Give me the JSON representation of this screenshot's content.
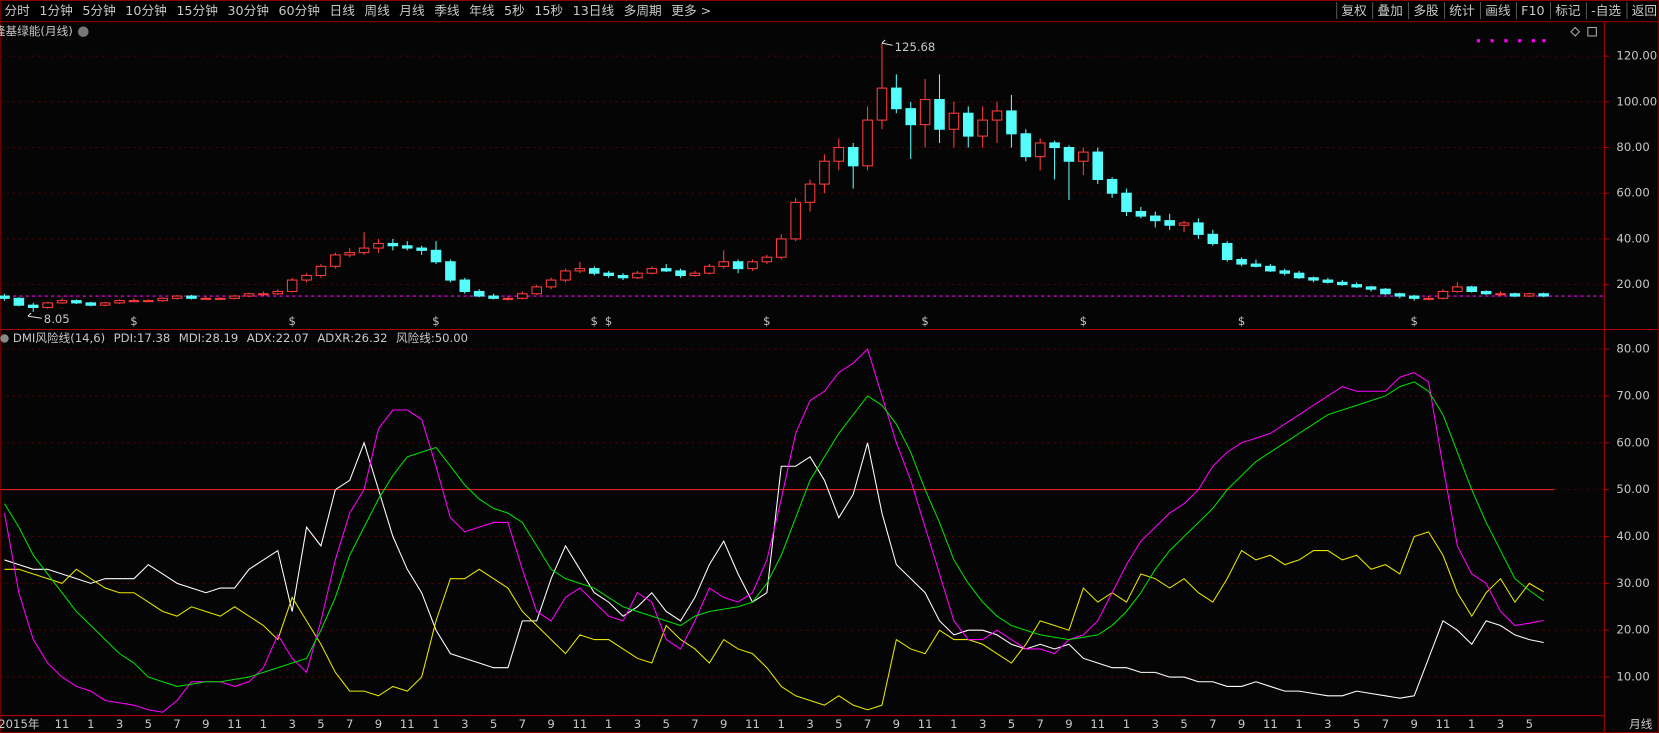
{
  "toolbar": {
    "periods": [
      "分时",
      "1分钟",
      "5分钟",
      "10分钟",
      "15分钟",
      "30分钟",
      "60分钟",
      "日线",
      "周线",
      "月线",
      "季线",
      "年线",
      "5秒",
      "15秒",
      "13日线",
      "多周期",
      "更多 >"
    ],
    "active": "月线",
    "tools": [
      "复权",
      "叠加",
      "多股",
      "统计",
      "画线",
      "F10",
      "标记",
      "-自选",
      "返回"
    ]
  },
  "footer": "月线",
  "chart_data": [
    {
      "type": "candlestick",
      "title": "隆基绿能(月线)",
      "up_color": "#ff3c3c",
      "down_color": "#54fcfc",
      "last_line_color": "#ff00ff",
      "ylim": [
        0.6,
        135.3
      ],
      "grid": true,
      "yticks": [
        {
          "value": 20,
          "label": "20.00"
        },
        {
          "value": 40,
          "label": "40.00"
        },
        {
          "value": 60,
          "label": "60.00"
        },
        {
          "value": 80,
          "label": "80.00"
        },
        {
          "value": 100,
          "label": "100.00"
        },
        {
          "value": 120,
          "label": "120.00"
        }
      ],
      "high_note": 125.68,
      "low_note": 8.05,
      "signals": {
        "label": "$",
        "color": "#ff2020",
        "at": [
          9,
          20,
          30,
          41,
          42,
          53,
          64,
          75,
          86,
          98
        ]
      },
      "ohlc": [
        [
          15,
          16,
          13,
          14
        ],
        [
          14,
          14.5,
          10.5,
          11
        ],
        [
          11,
          12,
          8.05,
          10
        ],
        [
          10,
          12.5,
          9.5,
          12
        ],
        [
          12,
          14,
          11.5,
          13
        ],
        [
          13,
          13.5,
          11.5,
          12
        ],
        [
          12,
          12.5,
          10.5,
          11
        ],
        [
          11,
          12.5,
          10.5,
          12
        ],
        [
          12,
          13.5,
          11.5,
          13
        ],
        [
          13,
          14,
          12.5,
          13
        ],
        [
          13,
          13.5,
          12.5,
          13
        ],
        [
          13,
          14.5,
          12.5,
          14
        ],
        [
          14,
          15.5,
          13.5,
          15
        ],
        [
          15,
          15.5,
          13.5,
          14
        ],
        [
          14,
          15,
          13.5,
          14
        ],
        [
          14,
          14.5,
          13.5,
          14
        ],
        [
          14,
          15.5,
          13.5,
          15
        ],
        [
          15,
          16.5,
          14.5,
          16
        ],
        [
          16,
          17,
          15,
          16
        ],
        [
          16,
          18,
          15.5,
          17
        ],
        [
          17,
          23,
          16.5,
          22
        ],
        [
          22,
          25,
          21,
          24
        ],
        [
          24,
          29,
          23,
          28
        ],
        [
          28,
          34,
          27,
          33
        ],
        [
          33,
          36,
          32,
          34
        ],
        [
          34,
          43,
          33,
          36
        ],
        [
          36,
          40,
          34,
          38
        ],
        [
          38,
          40,
          35,
          37
        ],
        [
          37,
          39,
          35,
          36
        ],
        [
          36,
          37,
          33,
          35
        ],
        [
          35,
          39,
          29,
          30
        ],
        [
          30,
          31,
          21,
          22
        ],
        [
          22,
          23,
          16,
          17
        ],
        [
          17,
          18,
          14.5,
          15
        ],
        [
          15,
          16,
          13.5,
          14
        ],
        [
          14,
          15,
          13,
          14
        ],
        [
          14,
          17,
          13.5,
          16
        ],
        [
          16,
          20,
          15.5,
          19
        ],
        [
          19,
          23,
          18,
          22
        ],
        [
          22,
          27,
          21,
          26
        ],
        [
          26,
          30,
          25,
          27
        ],
        [
          27,
          28,
          24,
          25
        ],
        [
          25,
          26,
          23,
          24
        ],
        [
          24,
          25,
          22,
          23
        ],
        [
          23,
          26,
          22.5,
          25
        ],
        [
          25,
          28,
          24.5,
          27
        ],
        [
          27,
          29,
          25.5,
          26
        ],
        [
          26,
          27,
          23,
          24
        ],
        [
          24,
          26,
          23.5,
          25
        ],
        [
          25,
          29,
          24.5,
          28
        ],
        [
          28,
          35,
          27,
          30
        ],
        [
          30,
          31,
          25,
          27
        ],
        [
          27,
          31,
          26,
          30
        ],
        [
          30,
          33,
          29,
          32
        ],
        [
          32,
          42,
          31,
          40
        ],
        [
          40,
          58,
          39,
          56
        ],
        [
          56,
          66,
          52,
          64
        ],
        [
          64,
          77,
          60,
          74
        ],
        [
          74,
          84,
          70,
          80
        ],
        [
          80,
          82,
          62,
          72
        ],
        [
          72,
          98,
          70,
          92
        ],
        [
          92,
          125.68,
          88,
          106
        ],
        [
          106,
          112,
          95,
          97
        ],
        [
          97,
          100,
          75,
          90
        ],
        [
          90,
          110,
          80,
          101
        ],
        [
          101,
          112,
          82,
          88
        ],
        [
          88,
          100,
          80,
          95
        ],
        [
          95,
          98,
          80,
          85
        ],
        [
          85,
          98,
          80,
          92
        ],
        [
          92,
          100,
          82,
          96
        ],
        [
          96,
          103,
          80,
          86
        ],
        [
          86,
          88,
          74,
          76
        ],
        [
          76,
          84,
          70,
          82
        ],
        [
          82,
          83,
          66,
          80
        ],
        [
          80,
          81,
          57,
          74
        ],
        [
          74,
          80,
          68,
          78
        ],
        [
          78,
          80,
          64,
          66
        ],
        [
          66,
          67,
          58,
          60
        ],
        [
          60,
          62,
          50,
          52
        ],
        [
          52,
          54,
          49,
          50
        ],
        [
          50,
          52,
          45,
          48
        ],
        [
          48,
          51,
          44,
          46
        ],
        [
          46,
          48,
          43,
          47
        ],
        [
          47,
          49,
          40,
          42
        ],
        [
          42,
          44,
          37,
          38
        ],
        [
          38,
          39,
          30,
          31
        ],
        [
          31,
          32,
          28,
          29
        ],
        [
          29,
          31,
          27.5,
          28
        ],
        [
          28,
          29,
          25.5,
          26
        ],
        [
          26,
          27,
          24,
          25
        ],
        [
          25,
          26,
          22.5,
          23
        ],
        [
          23,
          23.5,
          21,
          22
        ],
        [
          22,
          23,
          20.5,
          21
        ],
        [
          21,
          22,
          19.5,
          20
        ],
        [
          20,
          21,
          18.5,
          19
        ],
        [
          19,
          19.5,
          17,
          18
        ],
        [
          18,
          18.5,
          15.5,
          16
        ],
        [
          16,
          16.5,
          14,
          15
        ],
        [
          15,
          15.5,
          13,
          14
        ],
        [
          14,
          15,
          13.2,
          14
        ],
        [
          14,
          18,
          13.5,
          17
        ],
        [
          17,
          21,
          16.5,
          19
        ],
        [
          19,
          19.5,
          16.5,
          17
        ],
        [
          17,
          17.5,
          15.5,
          16
        ],
        [
          16,
          17,
          15,
          16
        ],
        [
          16,
          16.5,
          14.5,
          15
        ],
        [
          15,
          16.5,
          14.5,
          16
        ],
        [
          16,
          16.5,
          14.5,
          15
        ]
      ]
    },
    {
      "type": "line",
      "title": "DMI风险线(14,6)",
      "legend_separator": ": ",
      "ylim": [
        1.9,
        84.3
      ],
      "grid": true,
      "yticks": [
        {
          "value": 10,
          "label": "10.00"
        },
        {
          "value": 20,
          "label": "20.00"
        },
        {
          "value": 30,
          "label": "30.00"
        },
        {
          "value": 40,
          "label": "40.00"
        },
        {
          "value": 50,
          "label": "50.00"
        },
        {
          "value": 60,
          "label": "60.00"
        },
        {
          "value": 70,
          "label": "70.00"
        },
        {
          "value": 80,
          "label": "80.00"
        }
      ],
      "categories": [
        null,
        "2015年",
        null,
        null,
        "11",
        null,
        "1",
        null,
        "3",
        null,
        "5",
        null,
        "7",
        null,
        "9",
        null,
        "11",
        null,
        "1",
        null,
        "3",
        null,
        "5",
        null,
        "7",
        null,
        "9",
        null,
        "11",
        null,
        "1",
        null,
        "3",
        null,
        "5",
        null,
        "7",
        null,
        "9",
        null,
        "11",
        null,
        "1",
        null,
        "3",
        null,
        "5",
        null,
        "7",
        null,
        "9",
        null,
        "11",
        null,
        "1",
        null,
        "3",
        null,
        "5",
        null,
        "7",
        null,
        "9",
        null,
        "11",
        null,
        "1",
        null,
        "3",
        null,
        "5",
        null,
        "7",
        null,
        "9",
        null,
        "11",
        null,
        "1",
        null,
        "3",
        null,
        "5",
        null,
        "7",
        null,
        "9",
        null,
        "11",
        null,
        "1",
        null,
        "3",
        null,
        "5",
        null,
        "7",
        null,
        "9",
        null,
        "11",
        null,
        "1",
        null,
        "3",
        null,
        "5",
        null
      ],
      "risk_line": {
        "name": "风险线",
        "value": 50,
        "label": "50.00",
        "color": "#ff2020"
      },
      "series": [
        {
          "name": "PDI",
          "color": "#ffffff",
          "values": [
            35,
            34,
            33,
            33,
            32,
            31,
            30,
            31,
            31,
            31,
            34,
            32,
            30,
            29,
            28,
            29,
            29,
            33,
            35,
            37,
            24,
            42,
            38,
            50,
            52,
            60,
            50,
            40,
            33,
            28,
            20,
            15,
            14,
            13,
            12,
            12,
            22,
            22,
            31,
            38,
            33,
            28,
            26,
            23,
            25,
            28,
            24,
            22,
            27,
            34,
            39,
            32,
            26,
            28,
            55,
            55,
            57,
            52,
            44,
            49,
            60,
            45,
            34,
            31,
            28,
            22,
            19,
            20,
            20,
            19,
            17,
            16,
            17,
            16,
            17,
            14,
            13,
            12,
            12,
            11,
            11,
            10,
            10,
            9,
            9,
            8,
            8,
            9,
            8,
            7,
            7,
            6.5,
            6,
            6,
            7,
            6.5,
            6,
            5.5,
            6,
            14,
            22,
            20,
            17,
            22,
            21,
            19,
            18,
            17.38
          ]
        },
        {
          "name": "MDI",
          "color": "#e6e600",
          "values": [
            33,
            33,
            32,
            31,
            30,
            33,
            31,
            29,
            28,
            28,
            26,
            24,
            23,
            25,
            24,
            23,
            25,
            23,
            21,
            18,
            27,
            22,
            17,
            11,
            7,
            7,
            6,
            8,
            7,
            10,
            22,
            31,
            31,
            33,
            31,
            29,
            24,
            21,
            18,
            15,
            19,
            18,
            18,
            16,
            14,
            13,
            21,
            18,
            16,
            13,
            18,
            16,
            15,
            12,
            8,
            6,
            5,
            4,
            6,
            4,
            3,
            4,
            18,
            16,
            15,
            20,
            18,
            18,
            17,
            15,
            13,
            17,
            22,
            21,
            20,
            29,
            26,
            28,
            26,
            32,
            31,
            29,
            31,
            28,
            26,
            31,
            37,
            35,
            36,
            34,
            35,
            37,
            37,
            35,
            36,
            33,
            34,
            32,
            40,
            41,
            36,
            28,
            23,
            28,
            31,
            26,
            30,
            28.19
          ]
        },
        {
          "name": "ADX",
          "color": "#ff00ff",
          "values": [
            45,
            28,
            18,
            13,
            10,
            8,
            7,
            5,
            4.5,
            4,
            3,
            2.5,
            5,
            9,
            9,
            9,
            8,
            9,
            12,
            19,
            14,
            11,
            22,
            35,
            45,
            50,
            63,
            67,
            67,
            65,
            55,
            44,
            41,
            42,
            43,
            43,
            33,
            24,
            22,
            27,
            29,
            26,
            23,
            22,
            28,
            26,
            18,
            16,
            22,
            29,
            27,
            26,
            28,
            35,
            48,
            62,
            69,
            71,
            75,
            77,
            80,
            70,
            60,
            52,
            42,
            32,
            22,
            18,
            18,
            20,
            18,
            16,
            16,
            15,
            18,
            19,
            22,
            28,
            34,
            39,
            42,
            45,
            47,
            50,
            55,
            58,
            60,
            61,
            62,
            64,
            66,
            68,
            70,
            72,
            71,
            71,
            71,
            74,
            75,
            73,
            55,
            38,
            32,
            30,
            24,
            21,
            21.5,
            22.07
          ]
        },
        {
          "name": "ADXR",
          "color": "#00e000",
          "values": [
            47,
            42,
            36,
            32,
            28,
            24,
            21,
            18,
            15,
            13,
            10,
            9,
            8,
            8.5,
            9,
            9,
            9.5,
            10,
            11,
            12,
            13,
            14,
            20,
            27,
            36,
            42,
            48,
            53,
            57,
            58,
            59,
            55,
            51,
            48,
            46,
            45,
            43,
            38,
            33,
            31,
            30,
            29,
            27,
            25,
            24,
            23,
            22,
            21,
            23,
            24,
            24.5,
            25,
            26,
            30,
            36,
            44,
            52,
            57,
            62,
            66,
            70,
            68,
            64,
            58,
            50,
            43,
            35,
            30,
            26,
            23,
            21,
            20,
            19,
            18.5,
            18,
            18.5,
            19,
            21,
            24,
            28,
            33,
            37,
            40,
            43,
            46,
            50,
            53,
            56,
            58,
            60,
            62,
            64,
            66,
            67,
            68,
            69,
            70,
            72,
            73,
            71,
            66,
            58,
            50,
            43,
            37,
            31,
            28.5,
            26.32
          ]
        }
      ]
    }
  ]
}
